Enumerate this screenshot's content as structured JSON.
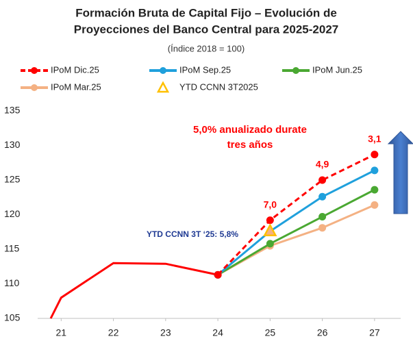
{
  "chart_data": {
    "type": "line",
    "title": [
      "Formación Bruta de Capital Fijo – Evolución de",
      "Proyecciones del Banco Central para 2025-2027"
    ],
    "subtitle": "(Índice 2018 = 100)",
    "history": {
      "color": "#ff0000",
      "x": [
        20.8,
        21,
        22,
        23,
        24
      ],
      "values": [
        105,
        108,
        113,
        112.9,
        111.3
      ]
    },
    "series": [
      {
        "name": "IPoM Dic.25",
        "color": "#ff0000",
        "dashed": true,
        "x": [
          24,
          25,
          26,
          27
        ],
        "values": [
          111.3,
          119.2,
          125.0,
          128.7
        ]
      },
      {
        "name": "IPoM Sep.25",
        "color": "#1fa0dc",
        "x": [
          24,
          25,
          26,
          27
        ],
        "values": [
          111.3,
          117.6,
          122.6,
          126.4
        ]
      },
      {
        "name": "IPoM Jun.25",
        "color": "#4aa832",
        "x": [
          24,
          25,
          26,
          27
        ],
        "values": [
          111.3,
          115.8,
          119.7,
          123.6
        ]
      },
      {
        "name": "IPoM Mar.25",
        "color": "#f4b183",
        "x": [
          24,
          25,
          26,
          27
        ],
        "values": [
          111.3,
          115.5,
          118.1,
          121.4
        ]
      }
    ],
    "points": [
      {
        "name": "YTD CCNN 3T2025",
        "color": "#ffc000",
        "x": 25,
        "value": 117.6
      }
    ],
    "annotations": [
      "7,0",
      "4,9",
      "3,1",
      "YTD CCNN 3T ‘25: 5,8%",
      "5,0% anualizado durate",
      "tres años"
    ],
    "xlim": [
      20.55,
      27.5
    ],
    "xticks": [
      21,
      22,
      23,
      24,
      25,
      26,
      27
    ],
    "ylim": [
      105,
      135
    ],
    "yticks": [
      105,
      110,
      115,
      120,
      125,
      130,
      135
    ]
  }
}
